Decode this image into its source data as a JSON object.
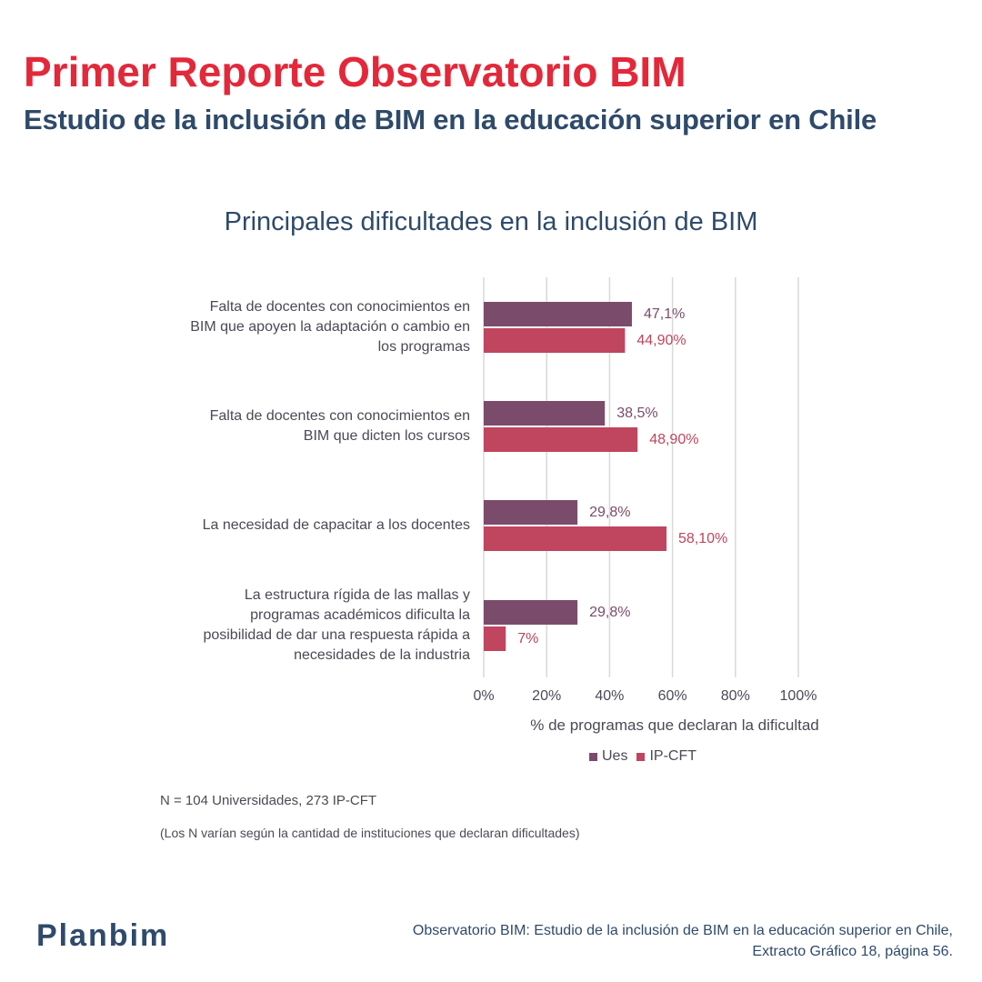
{
  "header": {
    "title": "Primer Reporte Observatorio BIM",
    "subtitle": "Estudio de la inclusión de BIM en la educación superior en Chile"
  },
  "chart_data": {
    "type": "bar",
    "orientation": "horizontal",
    "title": "Principales dificultades en la inclusión de BIM",
    "xlabel": "% de programas que declaran la dificultad",
    "xlim": [
      0,
      100
    ],
    "xticks": [
      "0%",
      "20%",
      "40%",
      "60%",
      "80%",
      "100%"
    ],
    "grid": true,
    "legend_position": "bottom",
    "categories": [
      [
        "Falta de docentes con conocimientos en",
        "BIM que apoyen la adaptación o cambio en",
        "los programas"
      ],
      [
        "Falta de docentes con conocimientos en",
        "BIM que dicten los cursos"
      ],
      [
        "La necesidad de capacitar a los docentes"
      ],
      [
        "La estructura rígida de las mallas y",
        "programas académicos dificulta la",
        "posibilidad de dar una respuesta rápida a",
        "necesidades de la industria"
      ]
    ],
    "series": [
      {
        "name": "Ues",
        "color": "#7b4b6b",
        "values": [
          47.1,
          38.5,
          29.8,
          29.8
        ],
        "labels": [
          "47,1%",
          "38,5%",
          "29,8%",
          "29,8%"
        ]
      },
      {
        "name": "IP-CFT",
        "color": "#c0455e",
        "values": [
          44.9,
          48.9,
          58.1,
          7
        ],
        "labels": [
          "44,90%",
          "48,90%",
          "58,10%",
          "7%"
        ]
      }
    ]
  },
  "notes": {
    "n_line": "N = 104 Universidades, 273 IP-CFT",
    "variation": "(Los N varían según la cantidad de instituciones que declaran dificultades)"
  },
  "footer": {
    "logo": "Planbim",
    "source_line1": "Observatorio BIM: Estudio de la inclusión de BIM en la educación superior en Chile,",
    "source_line2": "Extracto Gráfico 18, página 56."
  }
}
